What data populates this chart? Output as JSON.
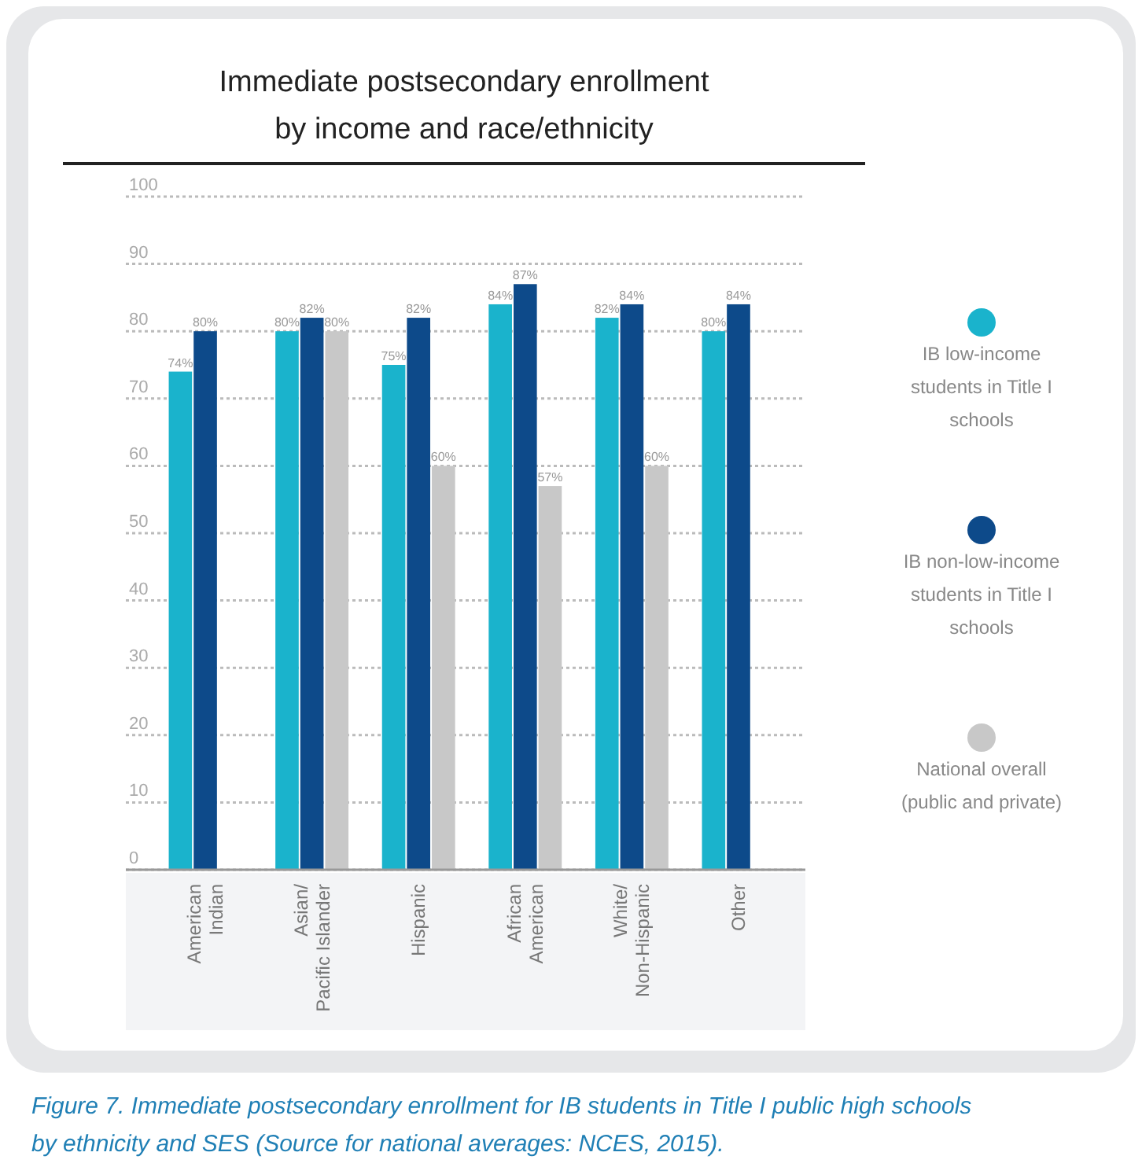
{
  "chart_data": {
    "type": "bar",
    "title": "Immediate postsecondary enrollment by income and race/ethnicity",
    "categories": [
      "American Indian",
      "Asian/Pacific Islander",
      "Hispanic",
      "African American",
      "White/Non-Hispanic",
      "Other"
    ],
    "series": [
      {
        "name": "IB low-income students in Title I schools",
        "color": "#1ab3cc",
        "values": [
          74,
          80,
          75,
          84,
          82,
          80
        ],
        "value_labels": [
          "74%",
          "80%",
          "75%",
          "84%",
          "82%",
          "80%"
        ]
      },
      {
        "name": "IB non-low-income students in Title I schools",
        "color": "#0d4a8a",
        "values": [
          80,
          82,
          82,
          87,
          84,
          84
        ],
        "value_labels": [
          "80%",
          "82%",
          "82%",
          "87%",
          "84%",
          "84%"
        ]
      },
      {
        "name": "National overall (public and private)",
        "color": "#c8c8c8",
        "values": [
          null,
          80,
          60,
          57,
          60,
          null
        ],
        "value_labels": [
          null,
          "80%",
          "60%",
          "57%",
          "60%",
          null
        ]
      }
    ],
    "ylim": [
      0,
      100
    ],
    "yticks": [
      0,
      10,
      20,
      30,
      40,
      50,
      60,
      70,
      80,
      90,
      100
    ],
    "grid": "y",
    "legend": "right",
    "annotations": [
      "Figure 7. Immediate postsecondary enrollment for IB students in Title I public high schools by ethnicity and SES (Source for national averages: NCES, 2015)."
    ]
  }
}
